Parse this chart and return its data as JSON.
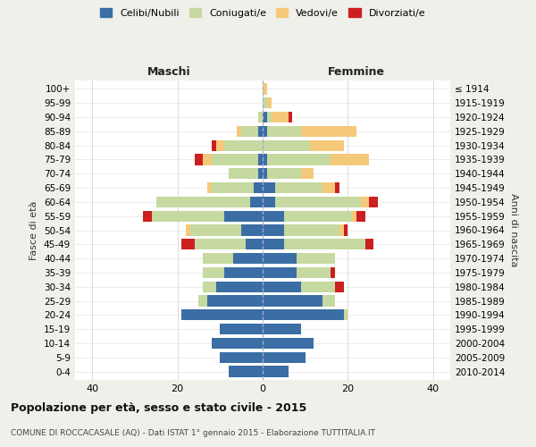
{
  "age_groups": [
    "0-4",
    "5-9",
    "10-14",
    "15-19",
    "20-24",
    "25-29",
    "30-34",
    "35-39",
    "40-44",
    "45-49",
    "50-54",
    "55-59",
    "60-64",
    "65-69",
    "70-74",
    "75-79",
    "80-84",
    "85-89",
    "90-94",
    "95-99",
    "100+"
  ],
  "birth_years": [
    "2010-2014",
    "2005-2009",
    "2000-2004",
    "1995-1999",
    "1990-1994",
    "1985-1989",
    "1980-1984",
    "1975-1979",
    "1970-1974",
    "1965-1969",
    "1960-1964",
    "1955-1959",
    "1950-1954",
    "1945-1949",
    "1940-1944",
    "1935-1939",
    "1930-1934",
    "1925-1929",
    "1920-1924",
    "1915-1919",
    "≤ 1914"
  ],
  "colors": {
    "celibi": "#3a6ea5",
    "coniugati": "#c5d9a0",
    "vedovi": "#f5c97a",
    "divorziati": "#cc2020"
  },
  "males": {
    "celibi": [
      8,
      10,
      12,
      10,
      19,
      13,
      11,
      9,
      7,
      4,
      5,
      9,
      3,
      2,
      1,
      1,
      0,
      1,
      0,
      0,
      0
    ],
    "coniugati": [
      0,
      0,
      0,
      0,
      0,
      2,
      3,
      5,
      7,
      12,
      12,
      17,
      22,
      10,
      7,
      11,
      9,
      4,
      1,
      0,
      0
    ],
    "vedovi": [
      0,
      0,
      0,
      0,
      0,
      0,
      0,
      0,
      0,
      0,
      1,
      0,
      0,
      1,
      0,
      2,
      2,
      1,
      0,
      0,
      0
    ],
    "divorziati": [
      0,
      0,
      0,
      0,
      0,
      0,
      0,
      0,
      0,
      3,
      0,
      2,
      0,
      0,
      0,
      2,
      1,
      0,
      0,
      0,
      0
    ]
  },
  "females": {
    "celibi": [
      6,
      10,
      12,
      9,
      19,
      14,
      9,
      8,
      8,
      5,
      5,
      5,
      3,
      3,
      1,
      1,
      0,
      1,
      1,
      0,
      0
    ],
    "coniugati": [
      0,
      0,
      0,
      0,
      1,
      3,
      8,
      8,
      9,
      19,
      13,
      16,
      20,
      11,
      8,
      15,
      11,
      8,
      1,
      1,
      0
    ],
    "vedovi": [
      0,
      0,
      0,
      0,
      0,
      0,
      0,
      0,
      0,
      0,
      1,
      1,
      2,
      3,
      3,
      9,
      8,
      13,
      4,
      1,
      1
    ],
    "divorziati": [
      0,
      0,
      0,
      0,
      0,
      0,
      2,
      1,
      0,
      2,
      1,
      2,
      2,
      1,
      0,
      0,
      0,
      0,
      1,
      0,
      0
    ]
  },
  "xlim": [
    -44,
    44
  ],
  "xticks": [
    -40,
    -20,
    0,
    20,
    40
  ],
  "xticklabels": [
    "40",
    "20",
    "0",
    "20",
    "40"
  ],
  "title": "Popolazione per età, sesso e stato civile - 2015",
  "subtitle": "COMUNE DI ROCCACASALE (AQ) - Dati ISTAT 1° gennaio 2015 - Elaborazione TUTTITALIA.IT",
  "ylabel": "Fasce di età",
  "ylabel_right": "Anni di nascita",
  "label_maschi": "Maschi",
  "label_femmine": "Femmine",
  "legend_labels": [
    "Celibi/Nubili",
    "Coniugati/e",
    "Vedovi/e",
    "Divorziati/e"
  ],
  "bg_color": "#f0f0eb",
  "plot_bg": "#ffffff"
}
